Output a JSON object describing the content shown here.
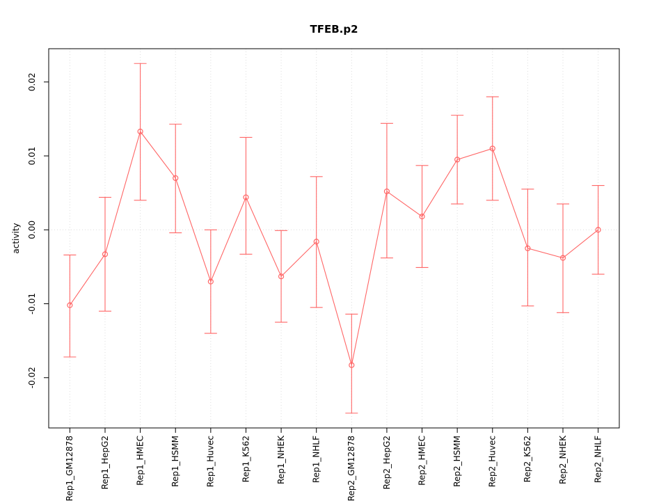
{
  "chart_data": {
    "type": "line",
    "title": "TFEB.p2",
    "xlabel": "",
    "ylabel": "activity",
    "legend": "none",
    "point_style": "open-circle-with-error-bars",
    "color": "#FF6666",
    "grid_color": "#DCDCDC",
    "categories": [
      "Rep1_GM12878",
      "Rep1_HepG2",
      "Rep1_HMEC",
      "Rep1_HSMM",
      "Rep1_Huvec",
      "Rep1_K562",
      "Rep1_NHEK",
      "Rep1_NHLF",
      "Rep2_GM12878",
      "Rep2_HepG2",
      "Rep2_HMEC",
      "Rep2_HSMM",
      "Rep2_Huvec",
      "Rep2_K562",
      "Rep2_NHEK",
      "Rep2_NHLF"
    ],
    "series": [
      {
        "name": "activity",
        "values": [
          -0.0102,
          -0.0033,
          0.0133,
          0.007,
          -0.007,
          0.0044,
          -0.0063,
          -0.0016,
          -0.0183,
          0.0052,
          0.0018,
          0.0095,
          0.011,
          -0.0025,
          -0.0038,
          0.0
        ],
        "lower": [
          -0.0172,
          -0.011,
          0.004,
          -0.0004,
          -0.014,
          -0.0033,
          -0.0125,
          -0.0105,
          -0.0248,
          -0.0038,
          -0.0051,
          0.0035,
          0.004,
          -0.0103,
          -0.0112,
          -0.006
        ],
        "upper": [
          -0.0034,
          0.0044,
          0.0225,
          0.0143,
          0.0,
          0.0125,
          -0.0001,
          0.0072,
          -0.0114,
          0.0144,
          0.0087,
          0.0155,
          0.018,
          0.0055,
          0.0035,
          0.006
        ]
      }
    ],
    "ylim": [
      -0.0268,
      0.0245
    ],
    "yticks": [
      {
        "v": -0.02,
        "label": "-0.02"
      },
      {
        "v": -0.01,
        "label": "-0.01"
      },
      {
        "v": 0,
        "label": "0.00"
      },
      {
        "v": 0.01,
        "label": "0.01"
      },
      {
        "v": 0.02,
        "label": "0.02"
      }
    ],
    "grid": "dotted vertical line per category plus dotted horizontal line at 0"
  }
}
